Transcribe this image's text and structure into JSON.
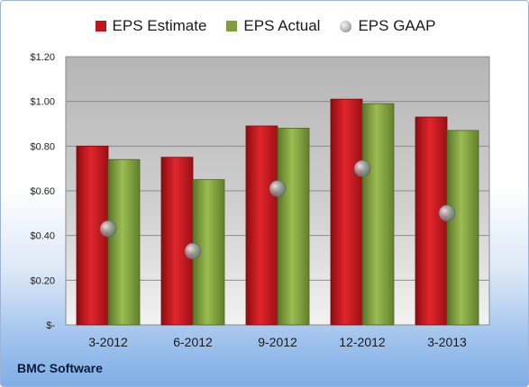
{
  "chart_data": {
    "type": "bar",
    "categories": [
      "3-2012",
      "6-2012",
      "9-2012",
      "12-2012",
      "3-2013"
    ],
    "series": [
      {
        "name": "EPS Estimate",
        "values": [
          0.8,
          0.75,
          0.89,
          1.01,
          0.93
        ],
        "color": "#c0161c"
      },
      {
        "name": "EPS Actual",
        "values": [
          0.74,
          0.65,
          0.88,
          0.99,
          0.87
        ],
        "color": "#7f9f3a"
      },
      {
        "name": "EPS GAAP",
        "values": [
          0.43,
          0.33,
          0.61,
          0.7,
          0.5
        ],
        "color": "#a9b1bb",
        "marker": "circle"
      }
    ],
    "ylim": [
      0,
      1.2
    ],
    "yticks": [
      0,
      0.2,
      0.4,
      0.6,
      0.8,
      1.0,
      1.2
    ],
    "ytick_labels": [
      "$-",
      "$0.20",
      "$0.40",
      "$0.60",
      "$0.80",
      "$1.00",
      "$1.20"
    ],
    "grid": true,
    "legend_position": "top"
  },
  "footer": {
    "company": "BMC Software"
  }
}
